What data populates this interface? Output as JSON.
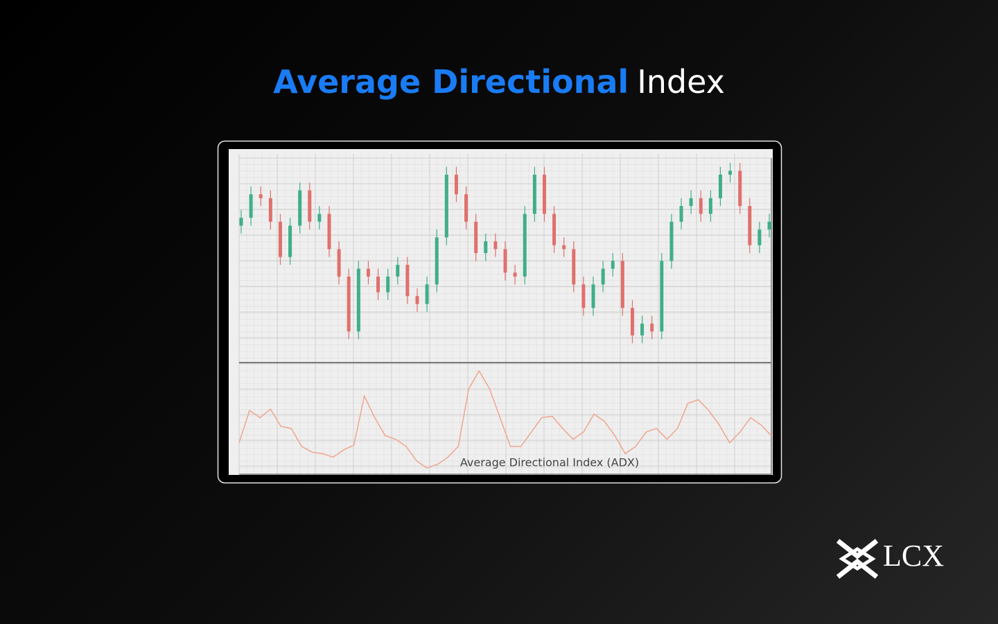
{
  "title_part1": "Average Directional",
  "title_part2": "Index",
  "chart_data": {
    "type": "candlestick",
    "open": [
      165,
      175,
      205,
      200,
      170,
      125,
      165,
      210,
      170,
      180,
      135,
      100,
      30,
      110,
      100,
      80,
      100,
      115,
      75,
      65,
      90,
      150,
      230,
      205,
      170,
      130,
      145,
      135,
      105,
      100,
      180,
      230,
      180,
      140,
      135,
      90,
      60,
      90,
      110,
      120,
      60,
      25,
      40,
      30,
      120,
      170,
      190,
      200,
      180,
      200,
      230,
      235,
      190,
      140,
      160
    ],
    "high": [
      185,
      215,
      215,
      210,
      180,
      175,
      220,
      220,
      190,
      190,
      145,
      110,
      120,
      120,
      110,
      110,
      125,
      125,
      85,
      100,
      160,
      240,
      240,
      215,
      180,
      155,
      155,
      145,
      115,
      190,
      240,
      240,
      190,
      150,
      145,
      100,
      100,
      120,
      130,
      130,
      70,
      50,
      50,
      130,
      180,
      200,
      210,
      210,
      210,
      240,
      245,
      245,
      200,
      170,
      180
    ],
    "low": [
      155,
      165,
      190,
      160,
      115,
      115,
      155,
      160,
      160,
      125,
      90,
      20,
      20,
      90,
      70,
      70,
      90,
      65,
      55,
      55,
      80,
      140,
      195,
      160,
      120,
      120,
      125,
      95,
      90,
      90,
      170,
      170,
      130,
      125,
      80,
      50,
      50,
      80,
      100,
      50,
      15,
      15,
      20,
      20,
      110,
      160,
      180,
      170,
      170,
      190,
      220,
      180,
      130,
      130,
      150
    ],
    "close": [
      175,
      205,
      200,
      170,
      125,
      165,
      210,
      170,
      180,
      135,
      100,
      30,
      110,
      100,
      80,
      100,
      115,
      75,
      65,
      90,
      150,
      230,
      205,
      170,
      130,
      145,
      135,
      105,
      100,
      180,
      230,
      180,
      140,
      135,
      90,
      60,
      90,
      110,
      120,
      60,
      25,
      40,
      30,
      120,
      170,
      190,
      200,
      180,
      200,
      230,
      235,
      190,
      140,
      160,
      170
    ],
    "up_color": "#3fae8a",
    "down_color": "#e0706c",
    "grid": true,
    "indicator": {
      "name": "Average Directional Index (ADX)",
      "color": "#f0a58e",
      "values": [
        45,
        90,
        80,
        92,
        68,
        65,
        40,
        32,
        30,
        25,
        35,
        42,
        110,
        80,
        55,
        50,
        40,
        20,
        10,
        15,
        25,
        40,
        120,
        145,
        120,
        80,
        40,
        40,
        60,
        80,
        82,
        65,
        50,
        60,
        85,
        75,
        55,
        30,
        40,
        60,
        65,
        50,
        65,
        100,
        105,
        90,
        70,
        45,
        60,
        80,
        70,
        55
      ]
    }
  },
  "logo": "LCX"
}
